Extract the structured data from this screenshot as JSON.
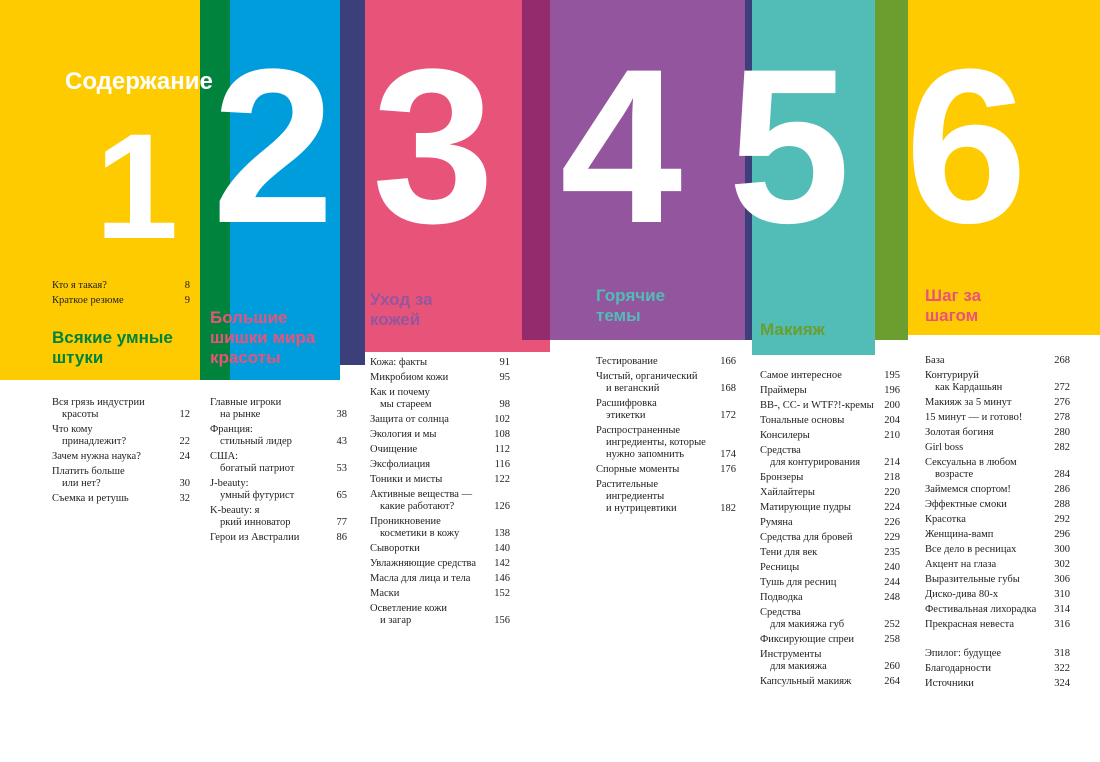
{
  "title": "Содержание",
  "colors": {
    "yellow": "#fecb00",
    "green": "#00843d",
    "blue": "#009ddc",
    "navy": "#3b3f7a",
    "pink": "#e8537a",
    "plum": "#932b6c",
    "purple": "#93569e",
    "teal": "#52bcb6",
    "olive": "#6b9d2f"
  },
  "chapter_numbers": [
    "1",
    "2",
    "3",
    "4",
    "5",
    "6"
  ],
  "intro": [
    {
      "lines": [
        "Кто я такая?"
      ],
      "page": "8"
    },
    {
      "lines": [
        "Краткое резюме"
      ],
      "page": "9"
    }
  ],
  "chapters": [
    {
      "heading": [
        "Всякие умные",
        "штуки"
      ],
      "entries": [
        {
          "lines": [
            "Вся грязь индустрии",
            "красоты"
          ],
          "page": "12"
        },
        {
          "lines": [
            "Что кому",
            "принадлежит?"
          ],
          "page": "22"
        },
        {
          "lines": [
            "Зачем нужна наука?"
          ],
          "page": "24"
        },
        {
          "lines": [
            "Платить больше",
            "или нет?"
          ],
          "page": "30"
        },
        {
          "lines": [
            "Съемка и ретушь"
          ],
          "page": "32"
        }
      ]
    },
    {
      "heading": [
        "Большие",
        "шишки мира",
        "красоты"
      ],
      "entries": [
        {
          "lines": [
            "Главные игроки",
            "на рынке"
          ],
          "page": "38"
        },
        {
          "lines": [
            "Франция:",
            "стильный лидер"
          ],
          "page": "43"
        },
        {
          "lines": [
            "США:",
            "богатый патриот"
          ],
          "page": "53"
        },
        {
          "lines": [
            "J-beauty:",
            "умный футурист"
          ],
          "page": "65"
        },
        {
          "lines": [
            "K-beauty: я",
            "ркий инноватор"
          ],
          "page": "77"
        },
        {
          "lines": [
            "Герои из Австралии"
          ],
          "page": "86"
        }
      ]
    },
    {
      "heading": [
        "Уход за",
        "кожей"
      ],
      "entries": [
        {
          "lines": [
            "Кожа: факты"
          ],
          "page": "91"
        },
        {
          "lines": [
            "Микробиом кожи"
          ],
          "page": "95"
        },
        {
          "lines": [
            "Как и почему",
            "мы стареем"
          ],
          "page": "98"
        },
        {
          "lines": [
            "Защита от солнца"
          ],
          "page": "102"
        },
        {
          "lines": [
            "Экология и мы"
          ],
          "page": "108"
        },
        {
          "lines": [
            "Очищение"
          ],
          "page": "112"
        },
        {
          "lines": [
            "Эксфолиация"
          ],
          "page": "116"
        },
        {
          "lines": [
            "Тоники и мисты"
          ],
          "page": "122"
        },
        {
          "lines": [
            "Активные вещества —",
            "какие работают?"
          ],
          "page": "126"
        },
        {
          "lines": [
            "Проникновение",
            "косметики в кожу"
          ],
          "page": "138"
        },
        {
          "lines": [
            "Сыворотки"
          ],
          "page": "140"
        },
        {
          "lines": [
            "Увлажняющие средства"
          ],
          "page": "142"
        },
        {
          "lines": [
            "Масла для лица и тела"
          ],
          "page": "146"
        },
        {
          "lines": [
            "Маски"
          ],
          "page": "152"
        },
        {
          "lines": [
            "Осветление кожи",
            "и загар"
          ],
          "page": "156"
        }
      ]
    },
    {
      "heading": [
        "Горячие",
        "темы"
      ],
      "entries": [
        {
          "lines": [
            "Тестирование"
          ],
          "page": "166"
        },
        {
          "lines": [
            "Чистый, органический",
            "и веганский"
          ],
          "page": "168"
        },
        {
          "lines": [
            "Расшифровка",
            "этикетки"
          ],
          "page": "172"
        },
        {
          "lines": [
            "Распространенные",
            "ингредиенты, которые",
            "нужно запомнить"
          ],
          "page": "174"
        },
        {
          "lines": [
            "Спорные моменты"
          ],
          "page": "176"
        },
        {
          "lines": [
            "Растительные",
            "ингредиенты",
            "и нутрицевтики"
          ],
          "page": "182"
        }
      ]
    },
    {
      "heading": [
        "Макияж"
      ],
      "entries": [
        {
          "lines": [
            "Самое интересное"
          ],
          "page": "195"
        },
        {
          "lines": [
            "Праймеры"
          ],
          "page": "196"
        },
        {
          "lines": [
            "BB-, CC- и WTF?!-кремы"
          ],
          "page": "200"
        },
        {
          "lines": [
            "Тональные основы"
          ],
          "page": "204"
        },
        {
          "lines": [
            "Консилеры"
          ],
          "page": "210"
        },
        {
          "lines": [
            "Средства",
            "для контурирования"
          ],
          "page": "214"
        },
        {
          "lines": [
            "Бронзеры"
          ],
          "page": "218"
        },
        {
          "lines": [
            "Хайлайтеры"
          ],
          "page": "220"
        },
        {
          "lines": [
            "Матирующие пудры"
          ],
          "page": "224"
        },
        {
          "lines": [
            "Румяна"
          ],
          "page": "226"
        },
        {
          "lines": [
            "Средства для бровей"
          ],
          "page": "229"
        },
        {
          "lines": [
            "Тени для век"
          ],
          "page": "235"
        },
        {
          "lines": [
            "Ресницы"
          ],
          "page": "240"
        },
        {
          "lines": [
            "Тушь для ресниц"
          ],
          "page": "244"
        },
        {
          "lines": [
            "Подводка"
          ],
          "page": "248"
        },
        {
          "lines": [
            "Средства",
            "для макияжа губ"
          ],
          "page": "252"
        },
        {
          "lines": [
            "Фиксирующие спреи"
          ],
          "page": "258"
        },
        {
          "lines": [
            "Инструменты",
            "для макияжа"
          ],
          "page": "260"
        },
        {
          "lines": [
            "Капсульный макияж"
          ],
          "page": "264"
        }
      ]
    },
    {
      "heading": [
        "Шаг за",
        "шагом"
      ],
      "entries": [
        {
          "lines": [
            "База"
          ],
          "page": "268"
        },
        {
          "lines": [
            "Контурируй",
            "как Кардашьян"
          ],
          "page": "272"
        },
        {
          "lines": [
            "Макияж за 5 минут"
          ],
          "page": "276"
        },
        {
          "lines": [
            "15 минут — и готово!"
          ],
          "page": "278"
        },
        {
          "lines": [
            "Золотая богиня"
          ],
          "page": "280"
        },
        {
          "lines": [
            "Girl boss"
          ],
          "page": "282"
        },
        {
          "lines": [
            "Сексуальна в любом",
            "возрасте"
          ],
          "page": "284"
        },
        {
          "lines": [
            "Займемся спортом!"
          ],
          "page": "286"
        },
        {
          "lines": [
            "Эффектные смоки"
          ],
          "page": "288"
        },
        {
          "lines": [
            "Красотка"
          ],
          "page": "292"
        },
        {
          "lines": [
            "Женщина-вамп"
          ],
          "page": "296"
        },
        {
          "lines": [
            "Все дело в ресницах"
          ],
          "page": "300"
        },
        {
          "lines": [
            "Акцент на глаза"
          ],
          "page": "302"
        },
        {
          "lines": [
            "Выразительные губы"
          ],
          "page": "306"
        },
        {
          "lines": [
            "Диско-дива 80-х"
          ],
          "page": "310"
        },
        {
          "lines": [
            "Фестивальная лихорадка"
          ],
          "page": "314"
        },
        {
          "lines": [
            "Прекрасная невеста"
          ],
          "page": "316"
        }
      ]
    }
  ],
  "back_matter": [
    {
      "lines": [
        "Эпилог: будущее"
      ],
      "page": "318"
    },
    {
      "lines": [
        "Благодарности"
      ],
      "page": "322"
    },
    {
      "lines": [
        "Источники"
      ],
      "page": "324"
    }
  ]
}
